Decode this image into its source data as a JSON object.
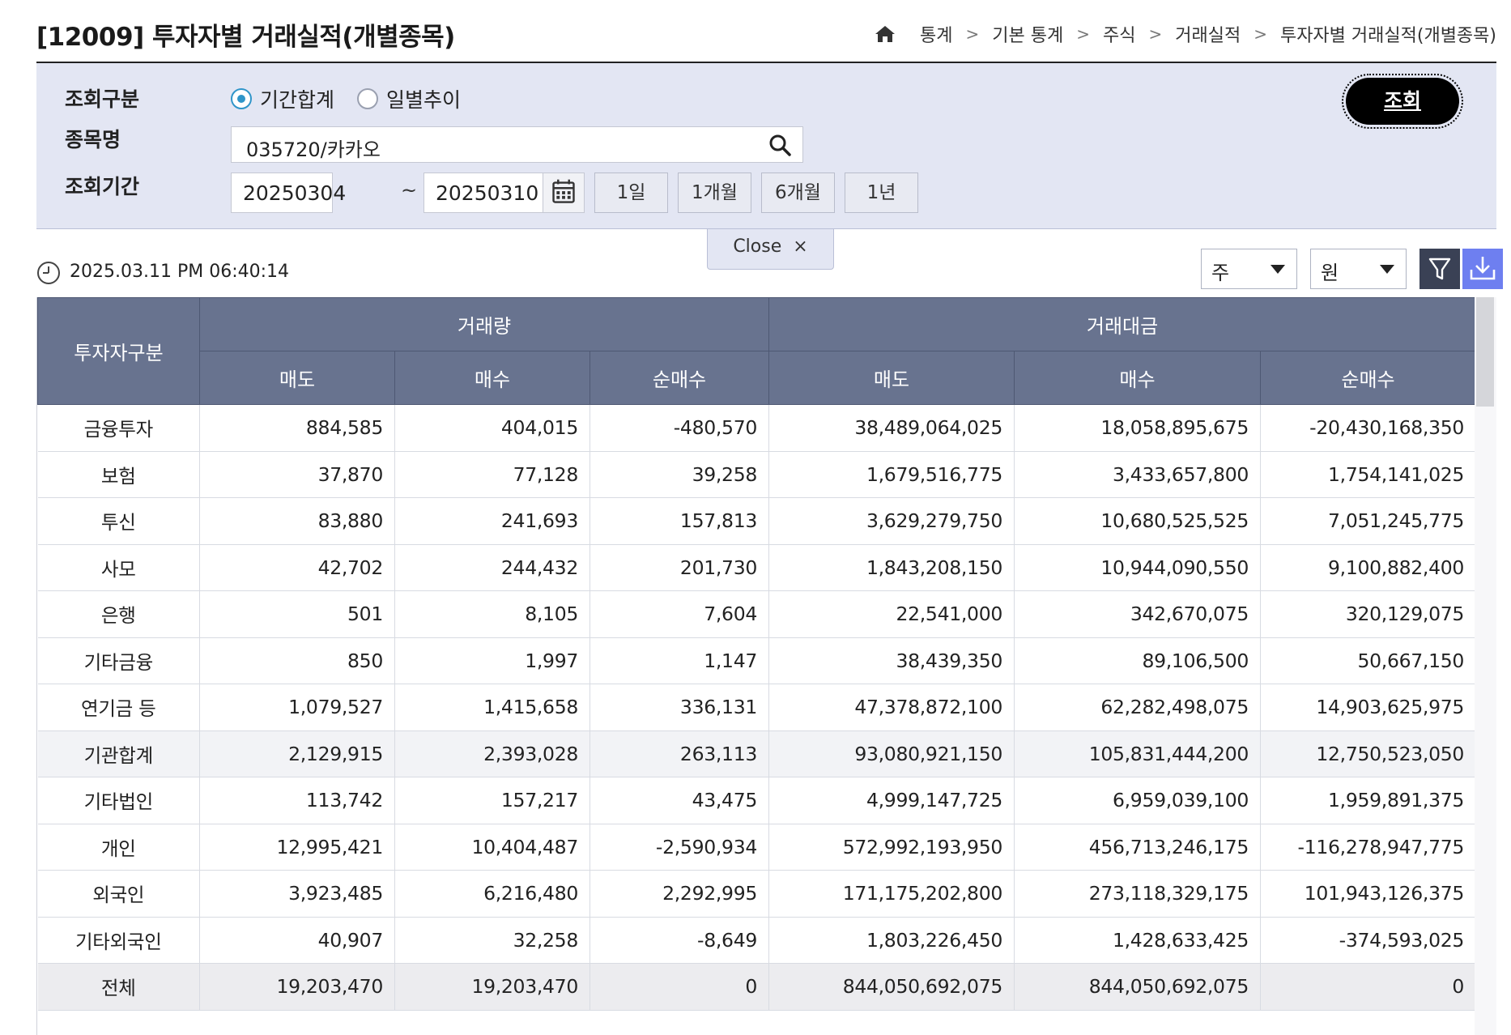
{
  "page": {
    "title": "[12009] 투자자별 거래실적(개별종목)",
    "breadcrumb": [
      "통계",
      "기본 통계",
      "주식",
      "거래실적",
      "투자자별 거래실적(개별종목)"
    ]
  },
  "search": {
    "query_type_label": "조회구분",
    "radio_options": [
      {
        "label": "기간합계",
        "checked": true
      },
      {
        "label": "일별추이",
        "checked": false
      }
    ],
    "stock_label": "종목명",
    "stock_value": "035720/카카오",
    "period_label": "조회기간",
    "start_date": "20250304",
    "tilde": "~",
    "end_date": "20250310",
    "period_buttons": [
      "1일",
      "1개월",
      "6개월",
      "1년"
    ],
    "query_button": "조회",
    "close_label": "Close",
    "close_x": "×"
  },
  "toolbar": {
    "timestamp": "2025.03.11 PM 06:40:14",
    "unit_share": "주",
    "unit_currency": "원"
  },
  "table": {
    "row_header": "투자자구분",
    "group_headers": [
      "거래량",
      "거래대금"
    ],
    "sub_headers": [
      "매도",
      "매수",
      "순매수",
      "매도",
      "매수",
      "순매수"
    ],
    "rows": [
      {
        "name": "금융투자",
        "values": [
          "884,585",
          "404,015",
          "-480,570",
          "38,489,064,025",
          "18,058,895,675",
          "-20,430,168,350"
        ]
      },
      {
        "name": "보험",
        "values": [
          "37,870",
          "77,128",
          "39,258",
          "1,679,516,775",
          "3,433,657,800",
          "1,754,141,025"
        ]
      },
      {
        "name": "투신",
        "values": [
          "83,880",
          "241,693",
          "157,813",
          "3,629,279,750",
          "10,680,525,525",
          "7,051,245,775"
        ]
      },
      {
        "name": "사모",
        "values": [
          "42,702",
          "244,432",
          "201,730",
          "1,843,208,150",
          "10,944,090,550",
          "9,100,882,400"
        ]
      },
      {
        "name": "은행",
        "values": [
          "501",
          "8,105",
          "7,604",
          "22,541,000",
          "342,670,075",
          "320,129,075"
        ]
      },
      {
        "name": "기타금융",
        "values": [
          "850",
          "1,997",
          "1,147",
          "38,439,350",
          "89,106,500",
          "50,667,150"
        ]
      },
      {
        "name": "연기금 등",
        "values": [
          "1,079,527",
          "1,415,658",
          "336,131",
          "47,378,872,100",
          "62,282,498,075",
          "14,903,625,975"
        ]
      },
      {
        "name": "기관합계",
        "values": [
          "2,129,915",
          "2,393,028",
          "263,113",
          "93,080,921,150",
          "105,831,444,200",
          "12,750,523,050"
        ],
        "style": "hl"
      },
      {
        "name": "기타법인",
        "values": [
          "113,742",
          "157,217",
          "43,475",
          "4,999,147,725",
          "6,959,039,100",
          "1,959,891,375"
        ]
      },
      {
        "name": "개인",
        "values": [
          "12,995,421",
          "10,404,487",
          "-2,590,934",
          "572,992,193,950",
          "456,713,246,175",
          "-116,278,947,775"
        ]
      },
      {
        "name": "외국인",
        "values": [
          "3,923,485",
          "6,216,480",
          "2,292,995",
          "171,175,202,800",
          "273,118,329,175",
          "101,943,126,375"
        ]
      },
      {
        "name": "기타외국인",
        "values": [
          "40,907",
          "32,258",
          "-8,649",
          "1,803,226,450",
          "1,428,633,425",
          "-374,593,025"
        ]
      },
      {
        "name": "전체",
        "values": [
          "19,203,470",
          "19,203,470",
          "0",
          "844,050,692,075",
          "844,050,692,075",
          "0"
        ],
        "style": "total"
      }
    ]
  },
  "colors": {
    "header_bg": "#68738f",
    "panel_bg": "#e3e6f3",
    "radio_accent": "#2f95c9",
    "query_button_bg": "#000000",
    "download_button_bg": "#6e7ff0",
    "filter_button_bg": "#3a4155"
  }
}
